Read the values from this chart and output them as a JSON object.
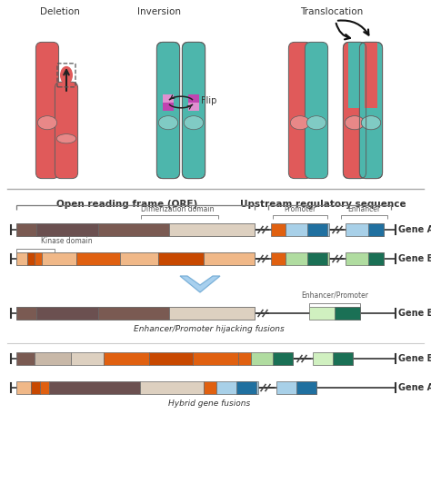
{
  "bg_color": "#ffffff",
  "deletion_label": "Deletion",
  "inversion_label": "Inversion",
  "translocation_label": "Translocation",
  "flip_label": "Flip",
  "chr_red": "#e05a5a",
  "chr_teal": "#4db6ac",
  "cent_red": "#e88888",
  "cent_teal": "#80cbc4",
  "inv_purple": "#c044b0",
  "inv_pink": "#e090d0",
  "orf_label": "Open reading frame (ORF)",
  "upstream_label": "Upstream regulatory sequence",
  "dimerization_label": "Dimerization domain",
  "kinase_label": "Kinase domain",
  "promoter_label": "Promoter",
  "enhancer_label": "Enhancer",
  "enhancer_promoter_label": "Enhancer/Promoter",
  "geneA_label": "Gene A",
  "geneB_label": "Gene B",
  "geneBgeneA_label": "Gene B::Gene A",
  "geneAgeneB_label": "Gene A::Gene B",
  "hijacking_label": "Enhancer/Promoter hijacking fusions",
  "hybrid_label": "Hybrid gene fusions",
  "brown_dark": "#7a5a52",
  "brown_med": "#6b5050",
  "brown_light": "#c8b8a8",
  "tan_light": "#ddd0c0",
  "orange_dark": "#c84800",
  "orange_med": "#e06010",
  "orange_light": "#f0b888",
  "blue_dark": "#2070a0",
  "blue_light": "#a8d0e8",
  "green_dark": "#1a7055",
  "green_light": "#b0dca0",
  "green_vlight": "#d0f0c0"
}
